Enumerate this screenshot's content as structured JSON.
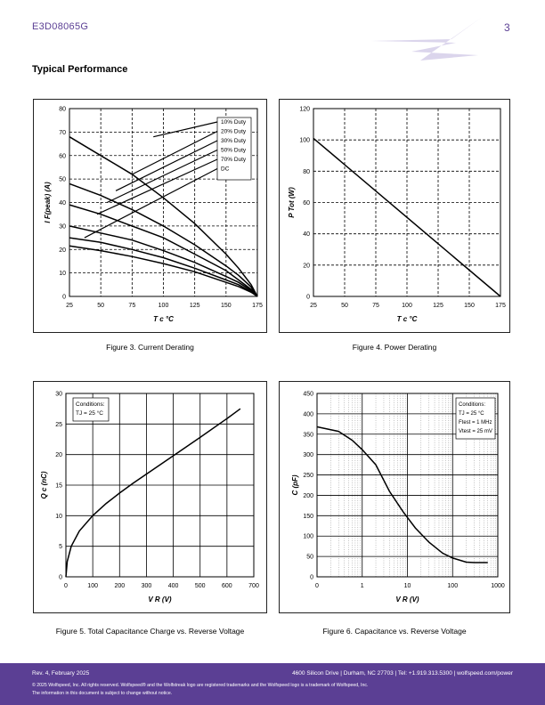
{
  "header": {
    "part_number": "E3D08065G",
    "page_number": "3"
  },
  "section_title": "Typical Performance",
  "figures": {
    "fig3": {
      "caption": "Figure 3. Current Derating",
      "ylabel": "I F(peak) (A)",
      "xlabel": "T c °C",
      "x_ticks": [
        "25",
        "50",
        "75",
        "100",
        "125",
        "150",
        "175"
      ],
      "y_ticks": [
        "0",
        "10",
        "20",
        "30",
        "40",
        "50",
        "60",
        "70",
        "80"
      ],
      "legend": [
        "10% Duty",
        "20% Duty",
        "30% Duty",
        "50% Duty",
        "70% Duty",
        "DC"
      ]
    },
    "fig4": {
      "caption": "Figure 4. Power Derating",
      "ylabel": "P Tot (W)",
      "xlabel": "T c °C",
      "x_ticks": [
        "25",
        "50",
        "75",
        "100",
        "125",
        "150",
        "175"
      ],
      "y_ticks": [
        "0",
        "20",
        "40",
        "60",
        "80",
        "100",
        "120"
      ]
    },
    "fig5": {
      "caption": "Figure 5. Total Capacitance Charge vs. Reverse Voltage",
      "ylabel": "Q c (nC)",
      "xlabel": "V R (V)",
      "x_ticks": [
        "0",
        "100",
        "200",
        "300",
        "400",
        "500",
        "600",
        "700"
      ],
      "y_ticks": [
        "0",
        "5",
        "10",
        "15",
        "20",
        "25",
        "30"
      ],
      "conditions": [
        "Conditions:",
        "TJ = 25 °C"
      ]
    },
    "fig6": {
      "caption": "Figure 6. Capacitance vs. Reverse Voltage",
      "ylabel": "C (pF)",
      "xlabel": "V R (V)",
      "x_ticks": [
        "0",
        "1",
        "10",
        "100",
        "1000"
      ],
      "y_ticks": [
        "0",
        "50",
        "100",
        "150",
        "200",
        "250",
        "300",
        "350",
        "400",
        "450"
      ],
      "conditions": [
        "Conditions:",
        "TJ = 25 °C",
        "Ftest = 1 MHz",
        "Vtest = 25 mV"
      ]
    }
  },
  "chart_data": [
    {
      "type": "line",
      "title": "Figure 3. Current Derating",
      "xlim": [
        25,
        175
      ],
      "ylim": [
        0,
        80
      ],
      "series": [
        {
          "name": "10% Duty",
          "x": [
            25,
            50,
            75,
            100,
            125,
            150,
            160,
            170,
            175
          ],
          "y": [
            68,
            60,
            52,
            42,
            31,
            18,
            12,
            5,
            0
          ]
        },
        {
          "name": "20% Duty",
          "x": [
            25,
            50,
            75,
            100,
            125,
            150,
            160,
            170,
            175
          ],
          "y": [
            48,
            43,
            37,
            30,
            22,
            13,
            9,
            4,
            0
          ]
        },
        {
          "name": "30% Duty",
          "x": [
            25,
            50,
            75,
            100,
            125,
            150,
            160,
            170,
            175
          ],
          "y": [
            39,
            35,
            30,
            25,
            18,
            11,
            7,
            3,
            0
          ]
        },
        {
          "name": "50% Duty",
          "x": [
            25,
            50,
            75,
            100,
            125,
            150,
            160,
            170,
            175
          ],
          "y": [
            30,
            27,
            24,
            19.5,
            14.5,
            8.5,
            6,
            2.5,
            0
          ]
        },
        {
          "name": "70% Duty",
          "x": [
            25,
            50,
            75,
            100,
            125,
            150,
            160,
            170,
            175
          ],
          "y": [
            25,
            23,
            20,
            16.5,
            12,
            7,
            5,
            2,
            0
          ]
        },
        {
          "name": "DC",
          "x": [
            25,
            50,
            75,
            100,
            125,
            150,
            160,
            170,
            175
          ],
          "y": [
            21.5,
            19.5,
            17,
            14,
            10.5,
            6,
            4.2,
            1.8,
            0
          ]
        }
      ]
    },
    {
      "type": "line",
      "title": "Figure 4. Power Derating",
      "xlim": [
        25,
        175
      ],
      "ylim": [
        0,
        120
      ],
      "series": [
        {
          "x": [
            25,
            175
          ],
          "y": [
            101,
            0
          ]
        }
      ]
    },
    {
      "type": "line",
      "title": "Figure 5. Total Capacitance Charge vs. Reverse Voltage",
      "xlim": [
        0,
        700
      ],
      "ylim": [
        0,
        30
      ],
      "series": [
        {
          "x": [
            0,
            5,
            20,
            50,
            100,
            150,
            200,
            250,
            300,
            400,
            500,
            600,
            650
          ],
          "y": [
            0,
            2.5,
            5,
            7.5,
            10,
            12,
            13.7,
            15.3,
            16.8,
            19.8,
            22.8,
            25.9,
            27.5
          ]
        }
      ]
    },
    {
      "type": "line",
      "title": "Figure 6. Capacitance vs. Reverse Voltage",
      "xlim": [
        0.1,
        1000
      ],
      "ylim": [
        0,
        450
      ],
      "x_scale": "log",
      "series": [
        {
          "x": [
            0.1,
            0.3,
            0.6,
            1,
            2,
            4,
            8,
            15,
            30,
            60,
            100,
            200,
            300,
            600
          ],
          "y": [
            368,
            357,
            335,
            312,
            275,
            210,
            160,
            120,
            85,
            58,
            46,
            36,
            35,
            35
          ]
        }
      ]
    }
  ],
  "footer": {
    "rev": "Rev. 4, February 2025",
    "address": "4600 Silicon Drive | Durham, NC 27703 | Tel: +1.919.313.5300 | wolfspeed.com/power",
    "copyright": "© 2025 Wolfspeed, Inc. All rights reserved. Wolfspeed® and the Wolfstreak logo are registered trademarks and the Wolfspeed logo is a trademark of Wolfspeed, Inc.",
    "notice": "The information in this document is subject to change without notice."
  }
}
